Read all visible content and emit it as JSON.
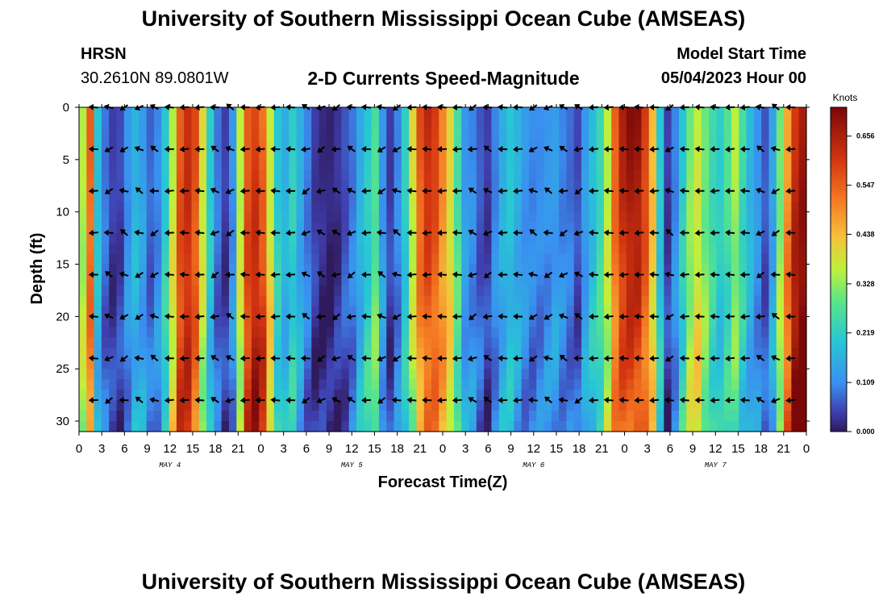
{
  "header": {
    "title": "University of Southern Mississippi Ocean Cube (AMSEAS)",
    "station": "HRSN",
    "coords": "30.2610N  89.0801W",
    "subtitle": "2-D Currents Speed-Magnitude",
    "start_label": "Model Start Time",
    "start_value": "05/04/2023 Hour 00"
  },
  "footer": {
    "title": "University of Southern Mississippi Ocean Cube (AMSEAS)"
  },
  "chart_data": {
    "type": "heatmap",
    "title": "2-D Currents Speed-Magnitude",
    "xlabel": "Forecast Time(Z)",
    "ylabel": "Depth (ft)",
    "x_hours_range": [
      0,
      96
    ],
    "x_tick_labels": [
      "0",
      "3",
      "6",
      "9",
      "12",
      "15",
      "18",
      "21",
      "0",
      "3",
      "6",
      "9",
      "12",
      "15",
      "18",
      "21",
      "0",
      "3",
      "6",
      "9",
      "12",
      "15",
      "18",
      "21",
      "0",
      "3",
      "6",
      "9",
      "12",
      "15",
      "18",
      "21",
      "0"
    ],
    "day_labels": [
      {
        "label": "MAY 4",
        "hour": 12
      },
      {
        "label": "MAY 5",
        "hour": 36
      },
      {
        "label": "MAY 6",
        "hour": 60
      },
      {
        "label": "MAY 7",
        "hour": 84
      }
    ],
    "y_range": [
      0,
      31
    ],
    "y_ticks": [
      0,
      5,
      10,
      15,
      20,
      25,
      30
    ],
    "colorbar": {
      "unit": "Knots",
      "range": [
        0.0,
        0.72
      ],
      "tick_values": [
        0.0,
        0.109,
        0.219,
        0.328,
        0.438,
        0.547,
        0.656
      ],
      "tick_labels": [
        "0.000",
        "0.109",
        "0.219",
        "0.328",
        "0.438",
        "0.547",
        "0.656"
      ]
    },
    "speed_profile_knots": [
      0.35,
      0.55,
      0.2,
      0.09,
      0.04,
      0.05,
      0.12,
      0.17,
      0.13,
      0.07,
      0.1,
      0.2,
      0.35,
      0.55,
      0.62,
      0.58,
      0.4,
      0.22,
      0.09,
      0.04,
      0.12,
      0.36,
      0.55,
      0.58,
      0.52,
      0.36,
      0.2,
      0.16,
      0.22,
      0.16,
      0.1,
      0.04,
      0.02,
      0.01,
      0.03,
      0.06,
      0.09,
      0.15,
      0.2,
      0.26,
      0.12,
      0.04,
      0.1,
      0.22,
      0.4,
      0.58,
      0.64,
      0.6,
      0.5,
      0.4,
      0.26,
      0.12,
      0.1,
      0.06,
      0.04,
      0.1,
      0.16,
      0.2,
      0.17,
      0.13,
      0.11,
      0.11,
      0.12,
      0.13,
      0.1,
      0.08,
      0.05,
      0.12,
      0.18,
      0.24,
      0.36,
      0.55,
      0.66,
      0.71,
      0.7,
      0.6,
      0.44,
      0.2,
      0.04,
      0.1,
      0.2,
      0.3,
      0.36,
      0.3,
      0.25,
      0.22,
      0.28,
      0.36,
      0.26,
      0.18,
      0.12,
      0.06,
      0.14,
      0.3,
      0.46,
      0.6,
      0.66
    ],
    "arrow_depths_ft": [
      0,
      4,
      8,
      12,
      16,
      20,
      24,
      28
    ],
    "arrow_hours": [
      0,
      2,
      4,
      6,
      8,
      10,
      12,
      14,
      16,
      18,
      20,
      22,
      24,
      26,
      28,
      30,
      32,
      34,
      36,
      38,
      40,
      42,
      44,
      46,
      48,
      50,
      52,
      54,
      56,
      58,
      60,
      62,
      64,
      66,
      68,
      70,
      72,
      74,
      76,
      78,
      80,
      82,
      84,
      86,
      88,
      90,
      92,
      94,
      96
    ],
    "arrow_direction": "mostly westward"
  }
}
